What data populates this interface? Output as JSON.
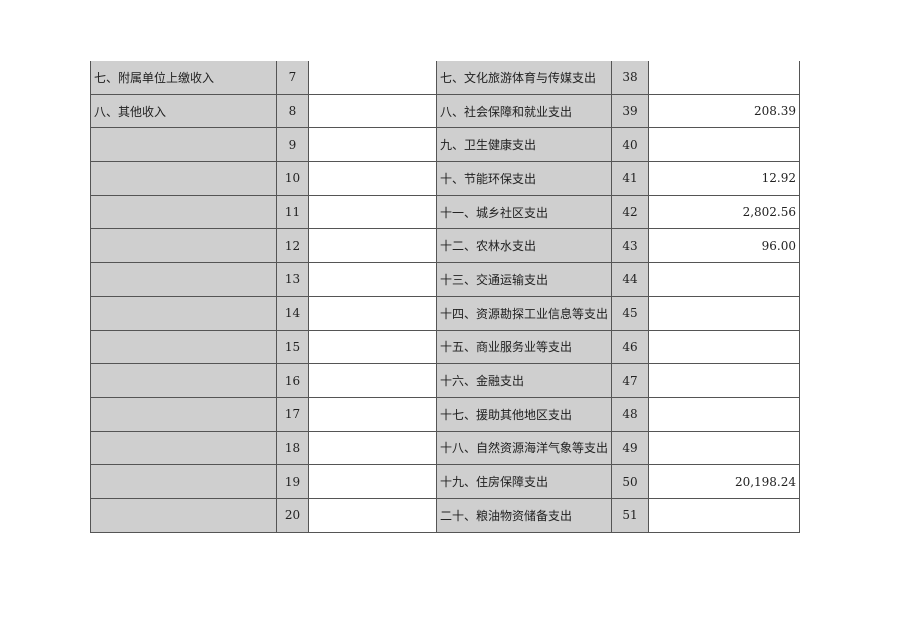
{
  "rows": [
    {
      "income_item": "七、附属单位上缴收入",
      "income_no": "7",
      "income_value": "",
      "expense_item": "七、文化旅游体育与传媒支出",
      "expense_no": "38",
      "expense_value": ""
    },
    {
      "income_item": "八、其他收入",
      "income_no": "8",
      "income_value": "",
      "expense_item": "八、社会保障和就业支出",
      "expense_no": "39",
      "expense_value": "208.39"
    },
    {
      "income_item": "",
      "income_no": "9",
      "income_value": "",
      "expense_item": "九、卫生健康支出",
      "expense_no": "40",
      "expense_value": ""
    },
    {
      "income_item": "",
      "income_no": "10",
      "income_value": "",
      "expense_item": "十、节能环保支出",
      "expense_no": "41",
      "expense_value": "12.92"
    },
    {
      "income_item": "",
      "income_no": "11",
      "income_value": "",
      "expense_item": "十一、城乡社区支出",
      "expense_no": "42",
      "expense_value": "2,802.56"
    },
    {
      "income_item": "",
      "income_no": "12",
      "income_value": "",
      "expense_item": "十二、农林水支出",
      "expense_no": "43",
      "expense_value": "96.00"
    },
    {
      "income_item": "",
      "income_no": "13",
      "income_value": "",
      "expense_item": "十三、交通运输支出",
      "expense_no": "44",
      "expense_value": ""
    },
    {
      "income_item": "",
      "income_no": "14",
      "income_value": "",
      "expense_item": "十四、资源勘探工业信息等支出",
      "expense_no": "45",
      "expense_value": ""
    },
    {
      "income_item": "",
      "income_no": "15",
      "income_value": "",
      "expense_item": "十五、商业服务业等支出",
      "expense_no": "46",
      "expense_value": ""
    },
    {
      "income_item": "",
      "income_no": "16",
      "income_value": "",
      "expense_item": "十六、金融支出",
      "expense_no": "47",
      "expense_value": ""
    },
    {
      "income_item": "",
      "income_no": "17",
      "income_value": "",
      "expense_item": "十七、援助其他地区支出",
      "expense_no": "48",
      "expense_value": ""
    },
    {
      "income_item": "",
      "income_no": "18",
      "income_value": "",
      "expense_item": "十八、自然资源海洋气象等支出",
      "expense_no": "49",
      "expense_value": ""
    },
    {
      "income_item": "",
      "income_no": "19",
      "income_value": "",
      "expense_item": "十九、住房保障支出",
      "expense_no": "50",
      "expense_value": "20,198.24"
    },
    {
      "income_item": "",
      "income_no": "20",
      "income_value": "",
      "expense_item": "二十、粮油物资储备支出",
      "expense_no": "51",
      "expense_value": ""
    }
  ]
}
